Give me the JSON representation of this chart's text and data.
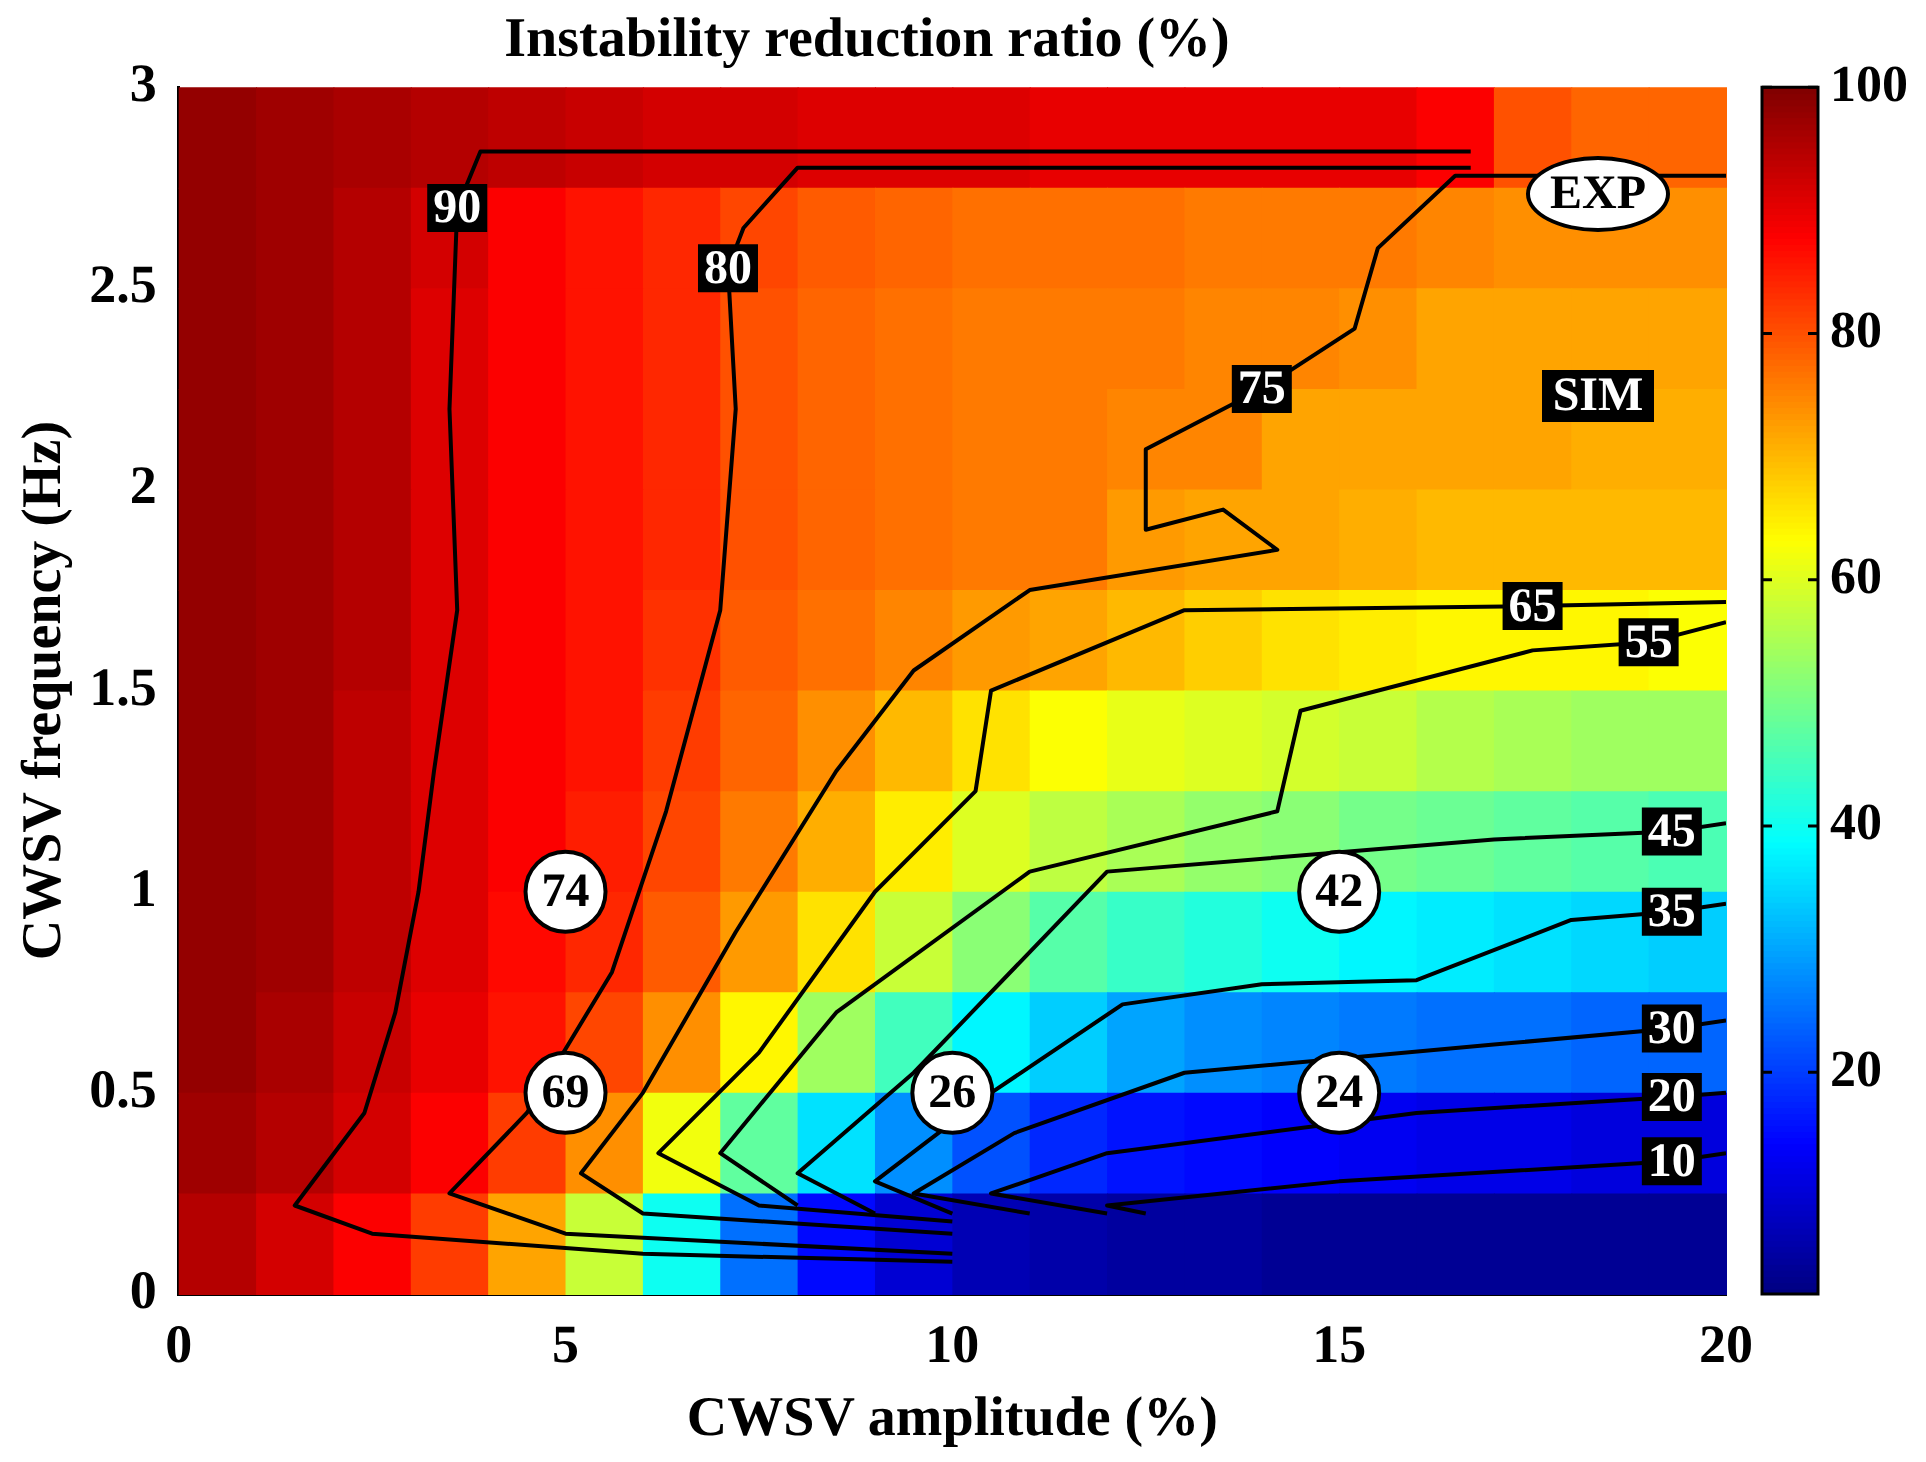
{
  "chart_data": {
    "type": "heatmap",
    "title": "Instability reduction ratio (%)",
    "xlabel": "CWSV amplitude (%)",
    "ylabel": "CWSV frequency (Hz)",
    "x": [
      0.5,
      1.5,
      2.5,
      3.5,
      4.5,
      5.5,
      6.5,
      7.5,
      8.5,
      9.5,
      10.5,
      11.5,
      12.5,
      13.5,
      14.5,
      15.5,
      16.5,
      17.5,
      18.5,
      19.5
    ],
    "y": [
      2.875,
      2.625,
      2.375,
      2.125,
      1.875,
      1.625,
      1.375,
      1.125,
      0.875,
      0.625,
      0.375,
      0.125
    ],
    "cells": [
      [
        98,
        97,
        96,
        95,
        94,
        93,
        92,
        92,
        91,
        91,
        91,
        90,
        90,
        90,
        90,
        90,
        88,
        80,
        78,
        78
      ],
      [
        98,
        97,
        95,
        92,
        88,
        86,
        84,
        81,
        79,
        78,
        77,
        77,
        77,
        76,
        76,
        76,
        75,
        74,
        74,
        74
      ],
      [
        98,
        97,
        95,
        91,
        88,
        86,
        84,
        80,
        78,
        77,
        76,
        76,
        76,
        75,
        75,
        74,
        72,
        72,
        72,
        72
      ],
      [
        98,
        97,
        95,
        91,
        88,
        86,
        84,
        80,
        78,
        77,
        76,
        76,
        75,
        75,
        72,
        72,
        72,
        72,
        71,
        71
      ],
      [
        98,
        97,
        95,
        91,
        88,
        86,
        84,
        80,
        78,
        77,
        76,
        76,
        73,
        72,
        72,
        71,
        70,
        70,
        70,
        70
      ],
      [
        98,
        97,
        95,
        91,
        88,
        86,
        83,
        79,
        77,
        75,
        73,
        72,
        70,
        68,
        66,
        65,
        64,
        64,
        64,
        63
      ],
      [
        98,
        97,
        94,
        91,
        88,
        86,
        82,
        78,
        74,
        70,
        66,
        63,
        61,
        60,
        59,
        58,
        56,
        55,
        54,
        54
      ],
      [
        98,
        97,
        94,
        91,
        88,
        85,
        81,
        76,
        71,
        65,
        60,
        57,
        55,
        53,
        52,
        50,
        49,
        48,
        47,
        46
      ],
      [
        98,
        97,
        94,
        91,
        87,
        84,
        79,
        73,
        66,
        58,
        52,
        47,
        44,
        42,
        40,
        38,
        37,
        36,
        35,
        34
      ],
      [
        98,
        96,
        93,
        90,
        86,
        81,
        74,
        64,
        54,
        45,
        38,
        34,
        30,
        28,
        27,
        26,
        25,
        25,
        24,
        24
      ],
      [
        97,
        95,
        92,
        88,
        82,
        74,
        62,
        48,
        36,
        28,
        22,
        18,
        16,
        15,
        14,
        13,
        12,
        12,
        11,
        11
      ],
      [
        95,
        92,
        88,
        82,
        72,
        58,
        40,
        25,
        15,
        10,
        7,
        6,
        5,
        5,
        4,
        4,
        4,
        4,
        4,
        4
      ]
    ],
    "clim": [
      2,
      100
    ],
    "cticks": [
      20,
      40,
      60,
      80,
      100
    ],
    "xlim": [
      0,
      20
    ],
    "xticks": [
      0,
      5,
      10,
      15,
      20
    ],
    "ylim": [
      0,
      3
    ],
    "yticks": [
      0,
      0.5,
      1,
      1.5,
      2,
      2.5,
      3
    ],
    "series": [
      {
        "name": "EXP",
        "type": "scatter",
        "marker": "circle",
        "color": "#ffffff",
        "x": [
          5,
          5,
          10,
          15,
          15
        ],
        "values": [
          1,
          0.5,
          0.5,
          1,
          0.5
        ]
      },
      {
        "type": "line",
        "color": "#000000",
        "x": [
          16.7,
          10,
          3.9,
          3.6,
          3.5,
          3.6,
          3.3,
          3.1,
          2.8,
          2.4,
          1.5,
          2.5,
          6,
          10
        ],
        "values": [
          2.84,
          2.84,
          2.84,
          2.7,
          2.2,
          1.7,
          1.3,
          1,
          0.7,
          0.45,
          0.22,
          0.15,
          0.1,
          0.08
        ]
      },
      {
        "type": "line",
        "color": "#000000",
        "x": [
          16.7,
          8,
          7.3,
          7.1,
          7.2,
          7,
          6.3,
          5.6,
          4.5,
          3.5,
          5,
          10
        ],
        "values": [
          2.8,
          2.8,
          2.65,
          2.55,
          2.2,
          1.7,
          1.2,
          0.8,
          0.45,
          0.25,
          0.15,
          0.1
        ]
      },
      {
        "type": "line",
        "color": "#000000",
        "x": [
          20,
          16.5,
          15.5,
          15.2,
          14,
          12.5,
          12.5,
          13.5,
          14.2,
          11,
          9.5,
          8.5,
          7.2,
          6,
          5.2,
          6,
          10
        ],
        "values": [
          2.78,
          2.78,
          2.6,
          2.4,
          2.25,
          2.1,
          1.9,
          1.95,
          1.85,
          1.75,
          1.55,
          1.3,
          0.9,
          0.5,
          0.3,
          0.2,
          0.15
        ]
      },
      {
        "type": "line",
        "color": "#000000",
        "x": [
          20,
          17.5,
          13,
          10.5,
          10.3,
          9,
          7.5,
          6.2,
          7.5,
          10
        ],
        "values": [
          1.72,
          1.71,
          1.7,
          1.5,
          1.25,
          1,
          0.6,
          0.35,
          0.22,
          0.18
        ]
      },
      {
        "type": "line",
        "color": "#000000",
        "x": [
          20,
          19,
          17.5,
          14.5,
          14.2,
          11,
          8.5,
          7,
          8
        ],
        "values": [
          1.67,
          1.62,
          1.6,
          1.45,
          1.2,
          1.05,
          0.7,
          0.35,
          0.22
        ]
      },
      {
        "type": "line",
        "color": "#000000",
        "x": [
          20,
          19.3,
          17,
          12,
          11,
          9.5,
          8,
          9
        ],
        "values": [
          1.17,
          1.15,
          1.13,
          1.05,
          0.85,
          0.55,
          0.3,
          0.2
        ]
      },
      {
        "type": "line",
        "color": "#000000",
        "x": [
          20,
          19.3,
          18,
          16,
          14,
          12.2,
          10.5,
          9,
          10
        ],
        "values": [
          0.97,
          0.95,
          0.93,
          0.78,
          0.77,
          0.72,
          0.5,
          0.28,
          0.2
        ]
      },
      {
        "type": "line",
        "color": "#000000",
        "x": [
          20,
          19.3,
          17,
          13,
          10.8,
          9.5,
          11
        ],
        "values": [
          0.68,
          0.66,
          0.62,
          0.55,
          0.4,
          0.25,
          0.2
        ]
      },
      {
        "type": "line",
        "color": "#000000",
        "x": [
          20,
          19.3,
          16,
          12,
          10.5,
          12
        ],
        "values": [
          0.5,
          0.49,
          0.45,
          0.35,
          0.25,
          0.2
        ]
      },
      {
        "type": "line",
        "color": "#000000",
        "x": [
          20,
          19.3,
          15,
          12,
          12.5
        ],
        "values": [
          0.35,
          0.33,
          0.28,
          0.22,
          0.2
        ]
      }
    ],
    "annotations": [
      "SIM",
      {
        "text": "74",
        "x": 5,
        "y": 1
      },
      {
        "text": "69",
        "x": 5,
        "y": 0.5
      },
      {
        "text": "26",
        "x": 10,
        "y": 0.5
      },
      {
        "text": "42",
        "x": 15,
        "y": 1
      },
      {
        "text": "24",
        "x": 15,
        "y": 0.5
      },
      {
        "text": "90",
        "x": 3.6,
        "y": 2.7
      },
      {
        "text": "80",
        "x": 7.1,
        "y": 2.55
      },
      {
        "text": "75",
        "x": 14,
        "y": 2.25
      },
      {
        "text": "65",
        "x": 17.5,
        "y": 1.71
      },
      {
        "text": "55",
        "x": 19,
        "y": 1.62
      },
      {
        "text": "45",
        "x": 19.3,
        "y": 1.15
      },
      {
        "text": "35",
        "x": 19.3,
        "y": 0.95
      },
      {
        "text": "30",
        "x": 19.3,
        "y": 0.66
      },
      {
        "text": "20",
        "x": 19.3,
        "y": 0.49
      },
      {
        "text": "10",
        "x": 19.3,
        "y": 0.33
      }
    ],
    "legend": "top right"
  }
}
